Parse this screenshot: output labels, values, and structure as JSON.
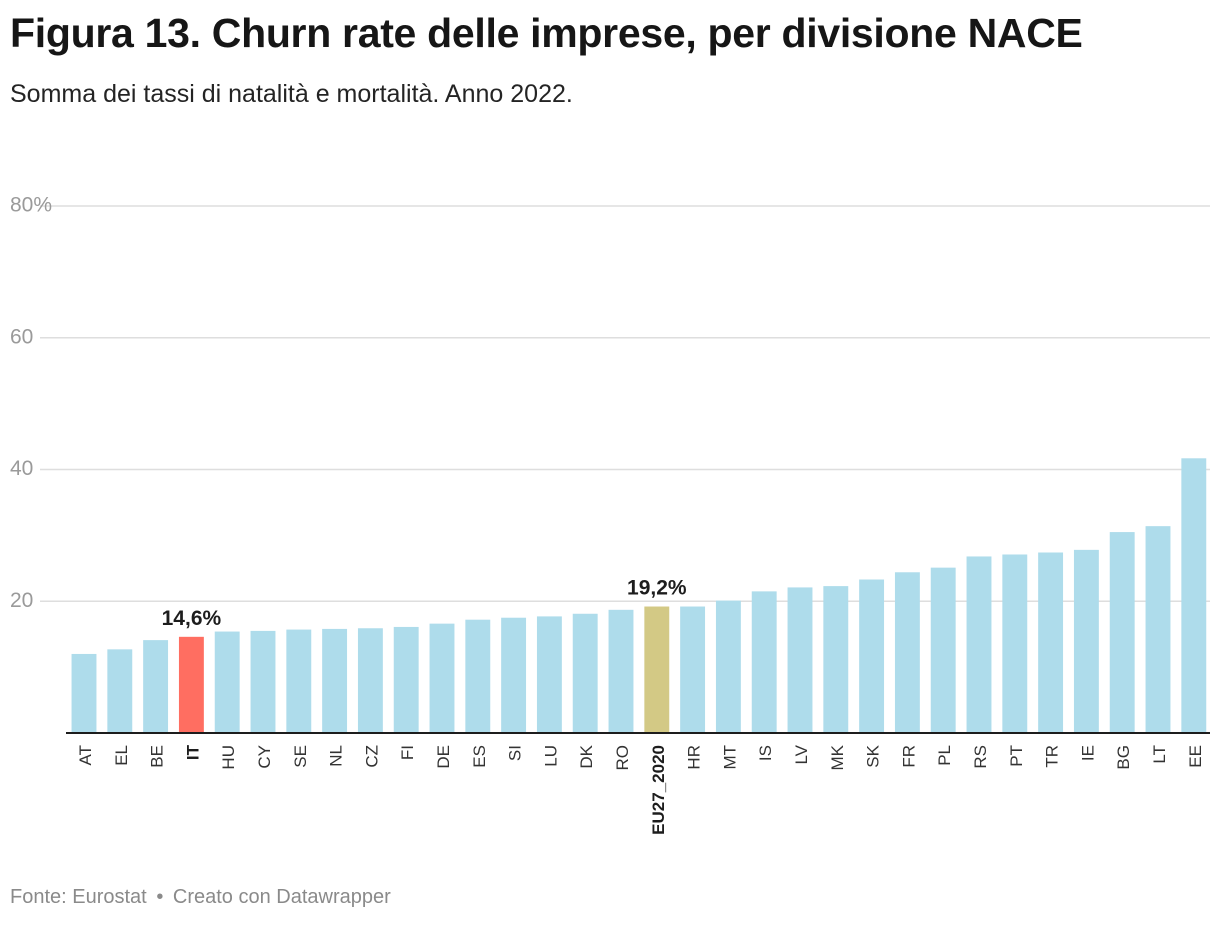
{
  "header": {
    "title": "Figura 13. Churn rate delle imprese, per divisione NACE",
    "subtitle": "Somma dei tassi di natalità e mortalità. Anno 2022."
  },
  "footer": {
    "source": "Fonte: Eurostat",
    "separator": "•",
    "credit": "Creato con Datawrapper"
  },
  "colors": {
    "default_bar": "#aedceb",
    "highlight_country": "#ff6e61",
    "highlight_eu": "#d3c985",
    "gridline": "#dedede",
    "axis_line": "#1d1d1d",
    "tick_label": "#9a9a9a",
    "category_label": "#333333"
  },
  "chart_data": {
    "type": "bar",
    "title": "Figura 13. Churn rate delle imprese, per divisione NACE",
    "subtitle": "Somma dei tassi di natalità e mortalità. Anno 2022.",
    "xlabel": "",
    "ylabel": "",
    "ylim": [
      0,
      80
    ],
    "yticks": [
      20,
      40,
      60,
      80
    ],
    "ytick_labels": [
      "20",
      "40",
      "60",
      "80%"
    ],
    "grid": true,
    "categories": [
      "AT",
      "EL",
      "BE",
      "IT",
      "HU",
      "CY",
      "SE",
      "NL",
      "CZ",
      "FI",
      "DE",
      "ES",
      "SI",
      "LU",
      "DK",
      "RO",
      "EU27_2020",
      "HR",
      "MT",
      "IS",
      "LV",
      "MK",
      "SK",
      "FR",
      "PL",
      "RS",
      "PT",
      "TR",
      "IE",
      "BG",
      "LT",
      "EE"
    ],
    "values": [
      12.0,
      12.7,
      14.1,
      14.6,
      15.4,
      15.5,
      15.7,
      15.8,
      15.9,
      16.1,
      16.6,
      17.2,
      17.5,
      17.7,
      18.1,
      18.7,
      19.2,
      19.2,
      20.1,
      21.5,
      22.1,
      22.3,
      23.3,
      24.4,
      25.1,
      26.8,
      27.1,
      27.4,
      27.8,
      30.5,
      31.4,
      41.7
    ],
    "highlights": {
      "IT": {
        "color_key": "highlight_country",
        "label": "14,6%"
      },
      "EU27_2020": {
        "color_key": "highlight_eu",
        "label": "19,2%"
      }
    }
  }
}
